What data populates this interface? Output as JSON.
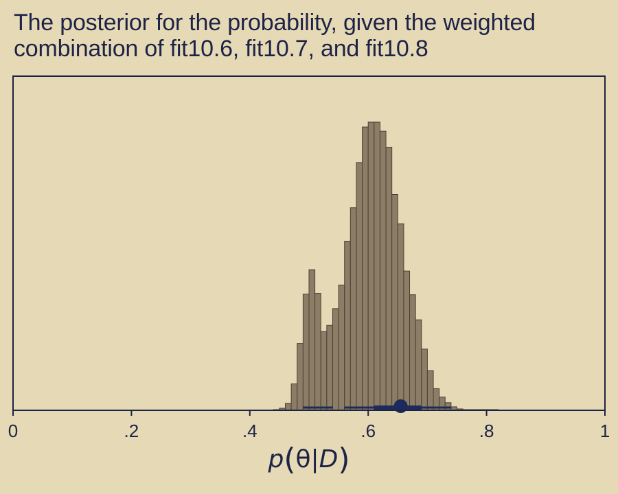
{
  "title": {
    "line1": "The posterior for the probability, given the weighted",
    "line2": "combination of fit10.6, fit10.7, and fit10.8"
  },
  "colors": {
    "background": "#e6d9b6",
    "bar_fill": "#8c7d67",
    "bar_stroke": "#4a3f32",
    "axis": "#1d2346",
    "interval": "#1d2a5c"
  },
  "chart_data": {
    "type": "bar",
    "title": "The posterior for the probability, given the weighted combination of fit10.6, fit10.7, and fit10.8",
    "xlabel": "p(θ|D)",
    "ylabel": "",
    "xlim": [
      0,
      1
    ],
    "x_ticks": [
      0,
      0.2,
      0.4,
      0.6,
      0.8,
      1
    ],
    "x_tick_labels": [
      "0",
      ".2",
      ".4",
      ".6",
      ".8",
      "1"
    ],
    "y_axis_shown": false,
    "grid": false,
    "bin_width": 0.01,
    "bin_left_edges": [
      0.44,
      0.45,
      0.46,
      0.47,
      0.48,
      0.49,
      0.5,
      0.51,
      0.52,
      0.53,
      0.54,
      0.55,
      0.56,
      0.57,
      0.58,
      0.59,
      0.6,
      0.61,
      0.62,
      0.63,
      0.64,
      0.65,
      0.66,
      0.67,
      0.68,
      0.69,
      0.7,
      0.71,
      0.72,
      0.73,
      0.74,
      0.75,
      0.76,
      0.77,
      0.78,
      0.79,
      0.8,
      0.81
    ],
    "values": [
      1,
      3,
      10,
      38,
      96,
      167,
      202,
      168,
      113,
      122,
      146,
      180,
      243,
      291,
      356,
      407,
      414,
      414,
      401,
      378,
      310,
      268,
      200,
      166,
      130,
      88,
      57,
      31,
      19,
      11,
      5,
      2,
      1,
      1,
      1,
      1,
      1,
      1
    ],
    "point_estimate": 0.655,
    "interval_inner": [
      0.61,
      0.69
    ],
    "interval_outer": [
      0.49,
      0.74
    ],
    "interval_gaps": [
      [
        0.54,
        0.56
      ]
    ]
  }
}
